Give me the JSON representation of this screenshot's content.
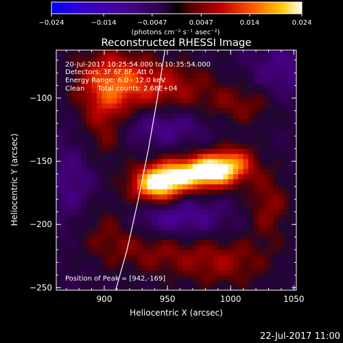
{
  "chart_data": {
    "type": "heatmap",
    "title": "Reconstructed RHESSI Image",
    "xlabel": "Heliocentric X (arcsec)",
    "ylabel": "Heliocentric Y (arcsec)",
    "xlim": [
      862,
      1052
    ],
    "ylim": [
      -252,
      -62
    ],
    "x_ticks": [
      {
        "v": 900,
        "label": "900"
      },
      {
        "v": 950,
        "label": "950"
      },
      {
        "v": 1000,
        "label": "1000"
      },
      {
        "v": 1050,
        "label": "1050"
      }
    ],
    "y_ticks": [
      {
        "v": -100,
        "label": "−100"
      },
      {
        "v": -150,
        "label": "−150"
      },
      {
        "v": -200,
        "label": "−200"
      },
      {
        "v": -250,
        "label": "−250"
      }
    ],
    "colorbar": {
      "range": [
        -0.024,
        0.024
      ],
      "colormap": "IDL colortable 3-like (blue-purple to red-yellow-white)",
      "tick_values": [
        -0.024,
        -0.014,
        -0.0047,
        0.0047,
        0.014,
        0.024
      ],
      "tick_labels": [
        "−0.024",
        "−0.014",
        "−0.0047",
        "0.0047",
        "0.014",
        "0.024"
      ],
      "label": "(photons cm⁻² s⁻¹ asec⁻²)"
    },
    "annotations": [
      "20-Jul-2017 10:25:54.000 to 10:35:54.000",
      "Detectors: 3F 6F 8F, Att 0",
      "Energy Range: 6.0 - 12.0 keV",
      "Clean      Total counts: 2.68E+04"
    ],
    "peak_text": "Position of Peak = [942,-169]",
    "peak": [
      942,
      -169
    ],
    "limb_curve": [
      [
        909,
        -252
      ],
      [
        918,
        -220
      ],
      [
        927,
        -180
      ],
      [
        935,
        -140
      ],
      [
        942,
        -100
      ],
      [
        948,
        -62
      ]
    ],
    "sources": [
      {
        "x": 942,
        "y": -169,
        "sx": 14,
        "sy": 10,
        "amp": 0.024
      },
      {
        "x": 966,
        "y": -160,
        "sx": 20,
        "sy": 9,
        "amp": 0.02
      },
      {
        "x": 988,
        "y": -156,
        "sx": 14,
        "sy": 9,
        "amp": 0.019
      },
      {
        "x": 1005,
        "y": -150,
        "sx": 12,
        "sy": 10,
        "amp": 0.01
      },
      {
        "x": 905,
        "y": -85,
        "sx": 20,
        "sy": 18,
        "amp": 0.012
      },
      {
        "x": 945,
        "y": -90,
        "sx": 28,
        "sy": 14,
        "amp": 0.01
      },
      {
        "x": 900,
        "y": -120,
        "sx": 12,
        "sy": 22,
        "amp": 0.008
      },
      {
        "x": 1010,
        "y": -105,
        "sx": 22,
        "sy": 12,
        "amp": 0.007
      },
      {
        "x": 1030,
        "y": -185,
        "sx": 12,
        "sy": 20,
        "amp": 0.008
      },
      {
        "x": 940,
        "y": -220,
        "sx": 28,
        "sy": 14,
        "amp": 0.007
      },
      {
        "x": 995,
        "y": -230,
        "sx": 25,
        "sy": 14,
        "amp": 0.008
      },
      {
        "x": 900,
        "y": -200,
        "sx": 18,
        "sy": 18,
        "amp": 0.006
      }
    ],
    "negatives": [
      {
        "x": 955,
        "y": -195,
        "sx": 28,
        "sy": 12,
        "amp": -0.009
      },
      {
        "x": 945,
        "y": -122,
        "sx": 25,
        "sy": 10,
        "amp": -0.007
      },
      {
        "x": 1040,
        "y": -80,
        "sx": 18,
        "sy": 18,
        "amp": -0.006
      },
      {
        "x": 875,
        "y": -170,
        "sx": 15,
        "sy": 25,
        "amp": -0.006
      }
    ]
  },
  "timestamp": "22-Jul-2017 11:00"
}
